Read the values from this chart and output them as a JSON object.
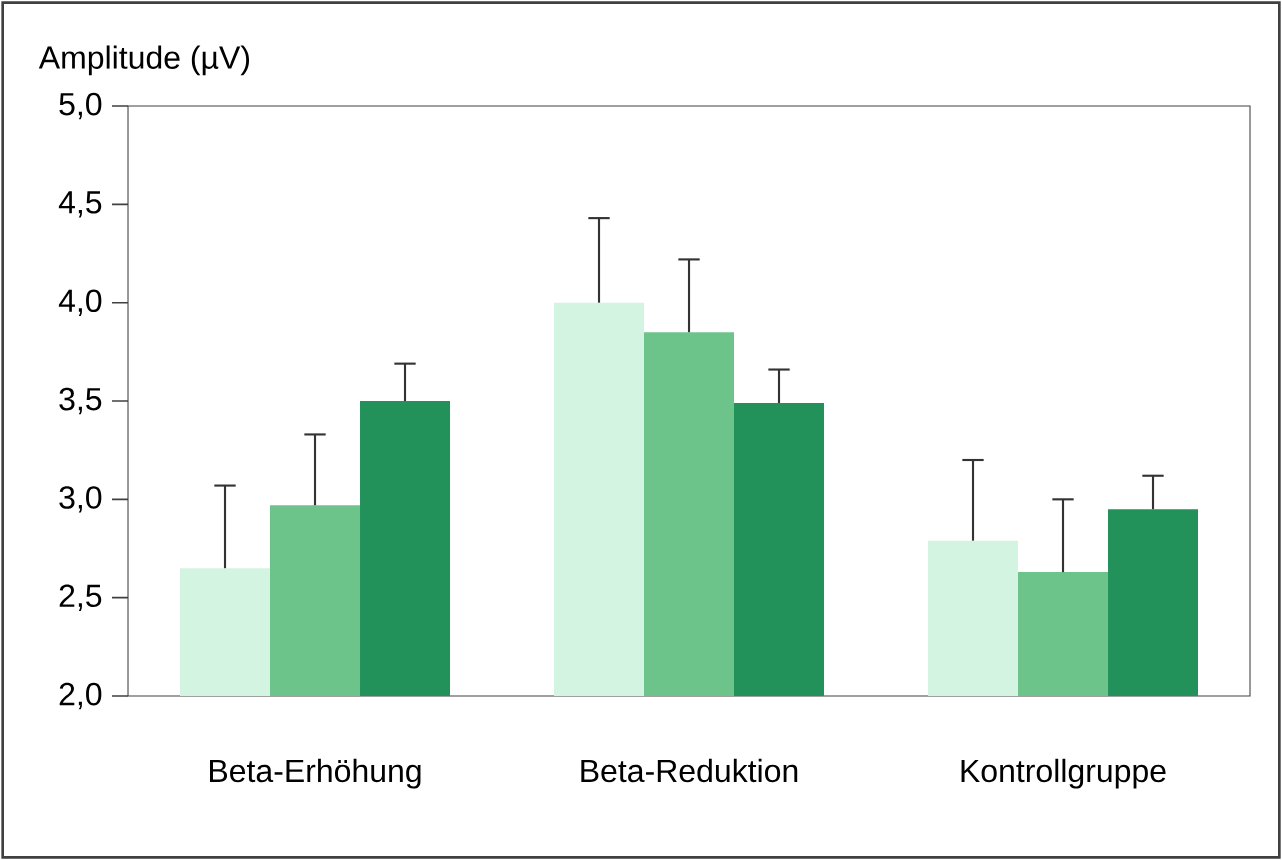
{
  "chart_data": {
    "type": "bar",
    "ylabel": "Amplitude (µV)",
    "categories": [
      "Beta-Erhöhung",
      "Beta-Reduktion",
      "Kontrollgruppe"
    ],
    "series": [
      {
        "color": "#d4f4e2",
        "values": [
          2.65,
          4.0,
          2.79
        ],
        "errors": [
          [
            2.65,
            3.07
          ],
          [
            4.0,
            4.43
          ],
          [
            2.79,
            3.2
          ]
        ]
      },
      {
        "color": "#6cc48a",
        "values": [
          2.97,
          3.85,
          2.63
        ],
        "errors": [
          [
            2.97,
            3.33
          ],
          [
            3.85,
            4.22
          ],
          [
            2.63,
            3.0
          ]
        ]
      },
      {
        "color": "#23925a",
        "values": [
          3.5,
          3.49,
          2.95
        ],
        "errors": [
          [
            3.5,
            3.69
          ],
          [
            3.49,
            3.66
          ],
          [
            2.95,
            3.12
          ]
        ]
      }
    ],
    "ylim": [
      2.0,
      5.0
    ],
    "yticks": [
      {
        "value": 2.0,
        "label": "2,0"
      },
      {
        "value": 2.5,
        "label": "2,5"
      },
      {
        "value": 3.0,
        "label": "3,0"
      },
      {
        "value": 3.5,
        "label": "3,5"
      },
      {
        "value": 4.0,
        "label": "4,0"
      },
      {
        "value": 4.5,
        "label": "4,5"
      },
      {
        "value": 5.0,
        "label": "5,0"
      }
    ],
    "grid": false
  }
}
